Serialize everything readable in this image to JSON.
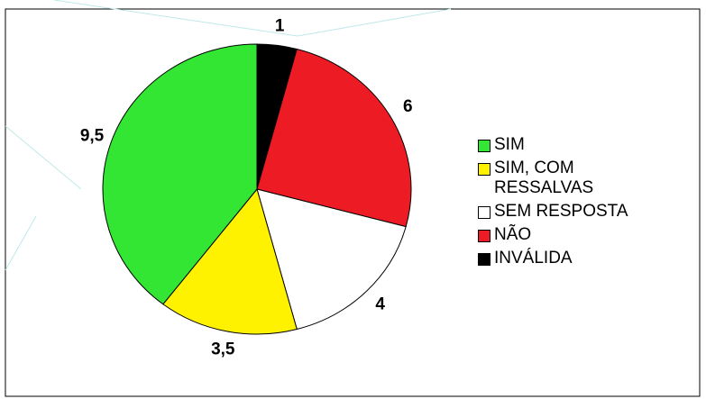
{
  "chart_data": {
    "type": "pie",
    "categories": [
      "INVÁLIDA",
      "NÃO",
      "SEM RESPOSTA",
      "SIM, COM RESSALVAS",
      "SIM"
    ],
    "values": [
      1,
      6,
      4,
      3.5,
      9.5
    ],
    "value_labels": [
      "1",
      "6",
      "4",
      "3,5",
      "9,5"
    ],
    "colors": [
      "#000000",
      "#ed1c24",
      "#ffffff",
      "#fff200",
      "#33e633"
    ],
    "legend": "right"
  }
}
